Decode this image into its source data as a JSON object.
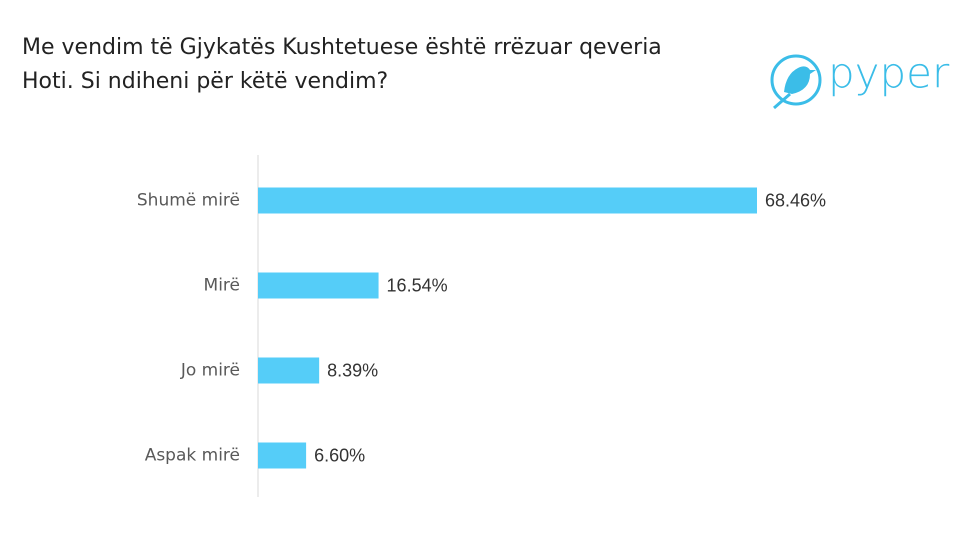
{
  "chart_data": {
    "type": "bar",
    "orientation": "horizontal",
    "title": [
      "Me vendim të Gjykatës Kushtetuese është rrëzuar qeveria",
      "Hoti. Si ndiheni për këtë vendim?"
    ],
    "logo": "pyper",
    "categories": [
      "Shumë mirë",
      "Mirë",
      "Jo mirë",
      "Aspak mirë"
    ],
    "values": [
      68.46,
      16.54,
      8.39,
      6.6
    ],
    "value_labels": [
      "68.46%",
      "16.54%",
      "8.39%",
      "6.60%"
    ],
    "color": "#55cdf8"
  }
}
